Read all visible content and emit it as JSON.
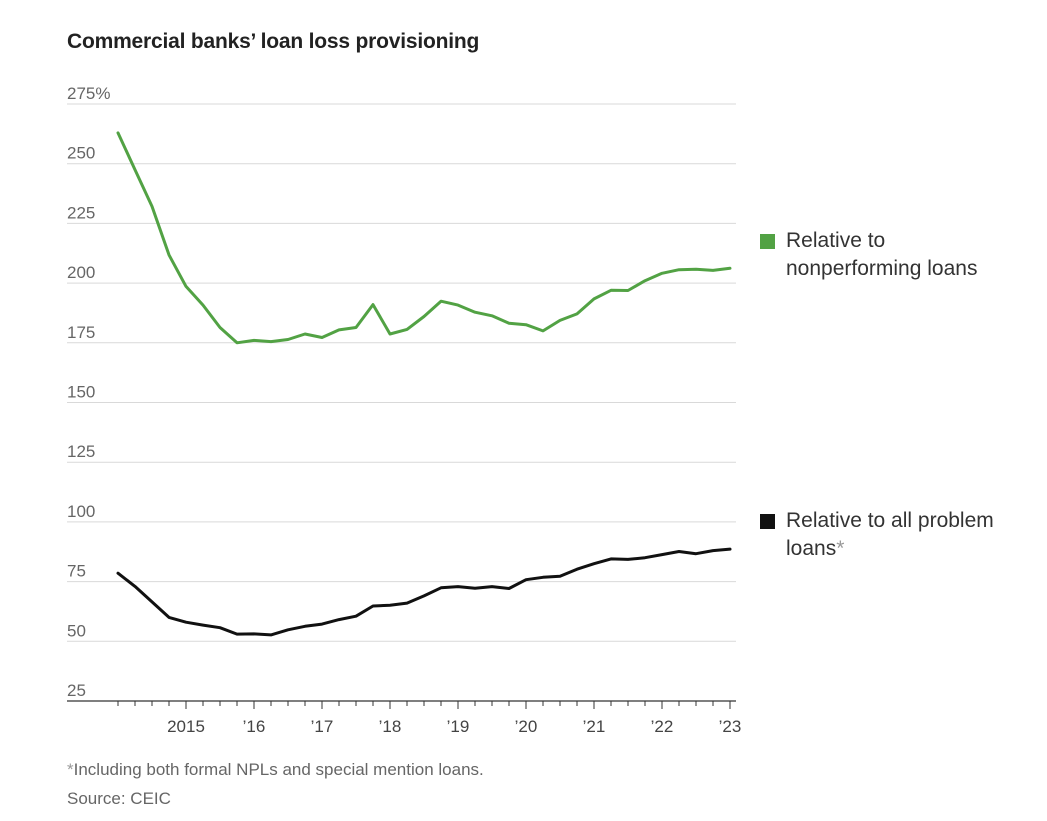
{
  "title": "Commercial banks’ loan loss provisioning",
  "footnote": {
    "marker": "*",
    "text": "Including both formal NPLs and special mention loans."
  },
  "source": "Source: CEIC",
  "chart_data": {
    "type": "line",
    "title": "Commercial banks’ loan loss provisioning",
    "ylim": [
      25,
      275
    ],
    "yticks": [
      {
        "value": 275,
        "label": "275%"
      },
      {
        "value": 250,
        "label": "250"
      },
      {
        "value": 225,
        "label": "225"
      },
      {
        "value": 200,
        "label": "200"
      },
      {
        "value": 175,
        "label": "175"
      },
      {
        "value": 150,
        "label": "150"
      },
      {
        "value": 125,
        "label": "125"
      },
      {
        "value": 100,
        "label": "100"
      },
      {
        "value": 75,
        "label": "75"
      },
      {
        "value": 50,
        "label": "50"
      },
      {
        "value": 25,
        "label": "25"
      }
    ],
    "xlim": [
      "2014-Q1",
      "2023-Q1"
    ],
    "xticks": [
      {
        "x": "2015-Q1",
        "label": "2015"
      },
      {
        "x": "2016-Q1",
        "label": "’16"
      },
      {
        "x": "2017-Q1",
        "label": "’17"
      },
      {
        "x": "2018-Q1",
        "label": "’18"
      },
      {
        "x": "2019-Q1",
        "label": "’19"
      },
      {
        "x": "2020-Q1",
        "label": "’20"
      },
      {
        "x": "2021-Q1",
        "label": "’21"
      },
      {
        "x": "2022-Q1",
        "label": "’22"
      },
      {
        "x": "2023-Q1",
        "label": "’23"
      }
    ],
    "grid": true,
    "legend_position": "right",
    "x": [
      "2014-Q1",
      "2014-Q2",
      "2014-Q3",
      "2014-Q4",
      "2015-Q1",
      "2015-Q2",
      "2015-Q3",
      "2015-Q4",
      "2016-Q1",
      "2016-Q2",
      "2016-Q3",
      "2016-Q4",
      "2017-Q1",
      "2017-Q2",
      "2017-Q3",
      "2017-Q4",
      "2018-Q1",
      "2018-Q2",
      "2018-Q3",
      "2018-Q4",
      "2019-Q1",
      "2019-Q2",
      "2019-Q3",
      "2019-Q4",
      "2020-Q1",
      "2020-Q2",
      "2020-Q3",
      "2020-Q4",
      "2021-Q1",
      "2021-Q2",
      "2021-Q3",
      "2021-Q4",
      "2022-Q1",
      "2022-Q2",
      "2022-Q3",
      "2022-Q4",
      "2023-Q1"
    ],
    "series": [
      {
        "name": "Relative to nonperforming loans",
        "color": "#52a244",
        "values": [
          262.9,
          247.5,
          232.1,
          211.8,
          198.6,
          190.8,
          181.4,
          175.0,
          176.0,
          175.5,
          176.4,
          178.7,
          177.2,
          180.4,
          181.4,
          191.0,
          178.7,
          180.6,
          186.0,
          192.4,
          190.8,
          187.8,
          186.3,
          183.2,
          182.6,
          180.0,
          184.4,
          187.1,
          193.4,
          197.0,
          196.9,
          201.0,
          204.1,
          205.6,
          205.8,
          205.3,
          206.2
        ]
      },
      {
        "name": "Relative to all problem loans",
        "color": "#111111",
        "values": [
          78.5,
          73.0,
          66.5,
          60.0,
          58.0,
          56.8,
          55.7,
          53.0,
          53.1,
          52.7,
          54.8,
          56.3,
          57.2,
          59.1,
          60.5,
          64.8,
          65.1,
          66.0,
          69.0,
          72.4,
          72.9,
          72.2,
          72.9,
          72.1,
          75.8,
          76.8,
          77.2,
          80.2,
          82.5,
          84.5,
          84.3,
          85.0,
          86.3,
          87.6,
          86.7,
          88.0,
          88.6
        ]
      }
    ]
  },
  "legend": [
    {
      "label": "Relative to nonperforming loans",
      "marker": "",
      "color": "#52a244"
    },
    {
      "label": "Relative to all problem loans",
      "marker": "*",
      "color": "#111111"
    }
  ]
}
